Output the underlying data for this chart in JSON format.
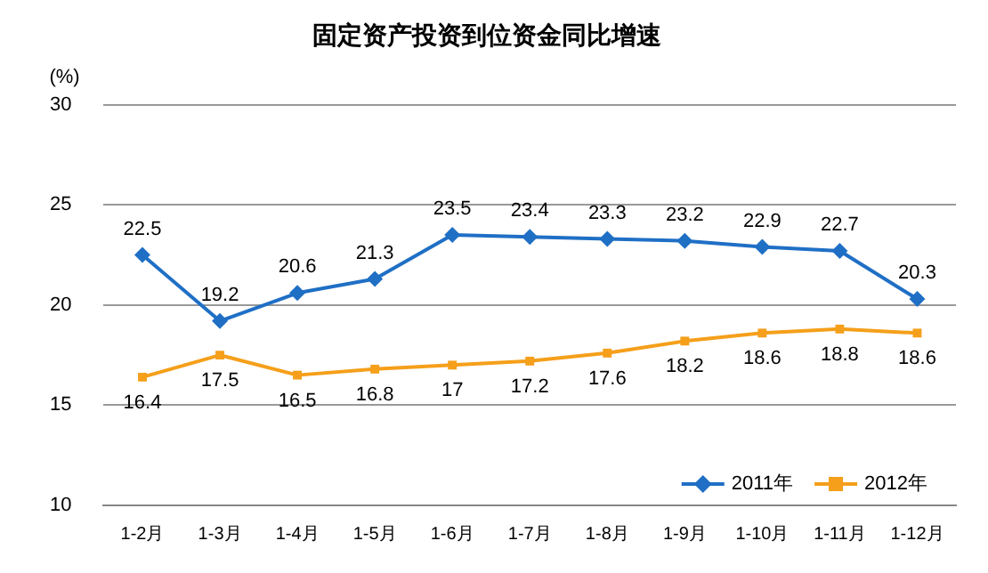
{
  "chart_data": {
    "type": "line",
    "title": "固定资产投资到位资金同比增速",
    "ylabel": "(%)",
    "categories": [
      "1-2月",
      "1-3月",
      "1-4月",
      "1-5月",
      "1-6月",
      "1-7月",
      "1-8月",
      "1-9月",
      "1-10月",
      "1-11月",
      "1-12月"
    ],
    "series": [
      {
        "name": "2011年",
        "color": "#1f6fc5",
        "marker": "diamond",
        "values": [
          22.5,
          19.2,
          20.6,
          21.3,
          23.5,
          23.4,
          23.3,
          23.2,
          22.9,
          22.7,
          20.3
        ]
      },
      {
        "name": "2012年",
        "color": "#f59f1a",
        "marker": "square",
        "values": [
          16.4,
          17.5,
          16.5,
          16.8,
          17,
          17.2,
          17.6,
          18.2,
          18.6,
          18.8,
          18.6
        ]
      }
    ],
    "ylim": [
      10,
      30
    ],
    "yticks": [
      10,
      15,
      20,
      25,
      30
    ],
    "grid": "y",
    "legend": "bottom right",
    "data_labels": true,
    "line_style": "solid"
  }
}
